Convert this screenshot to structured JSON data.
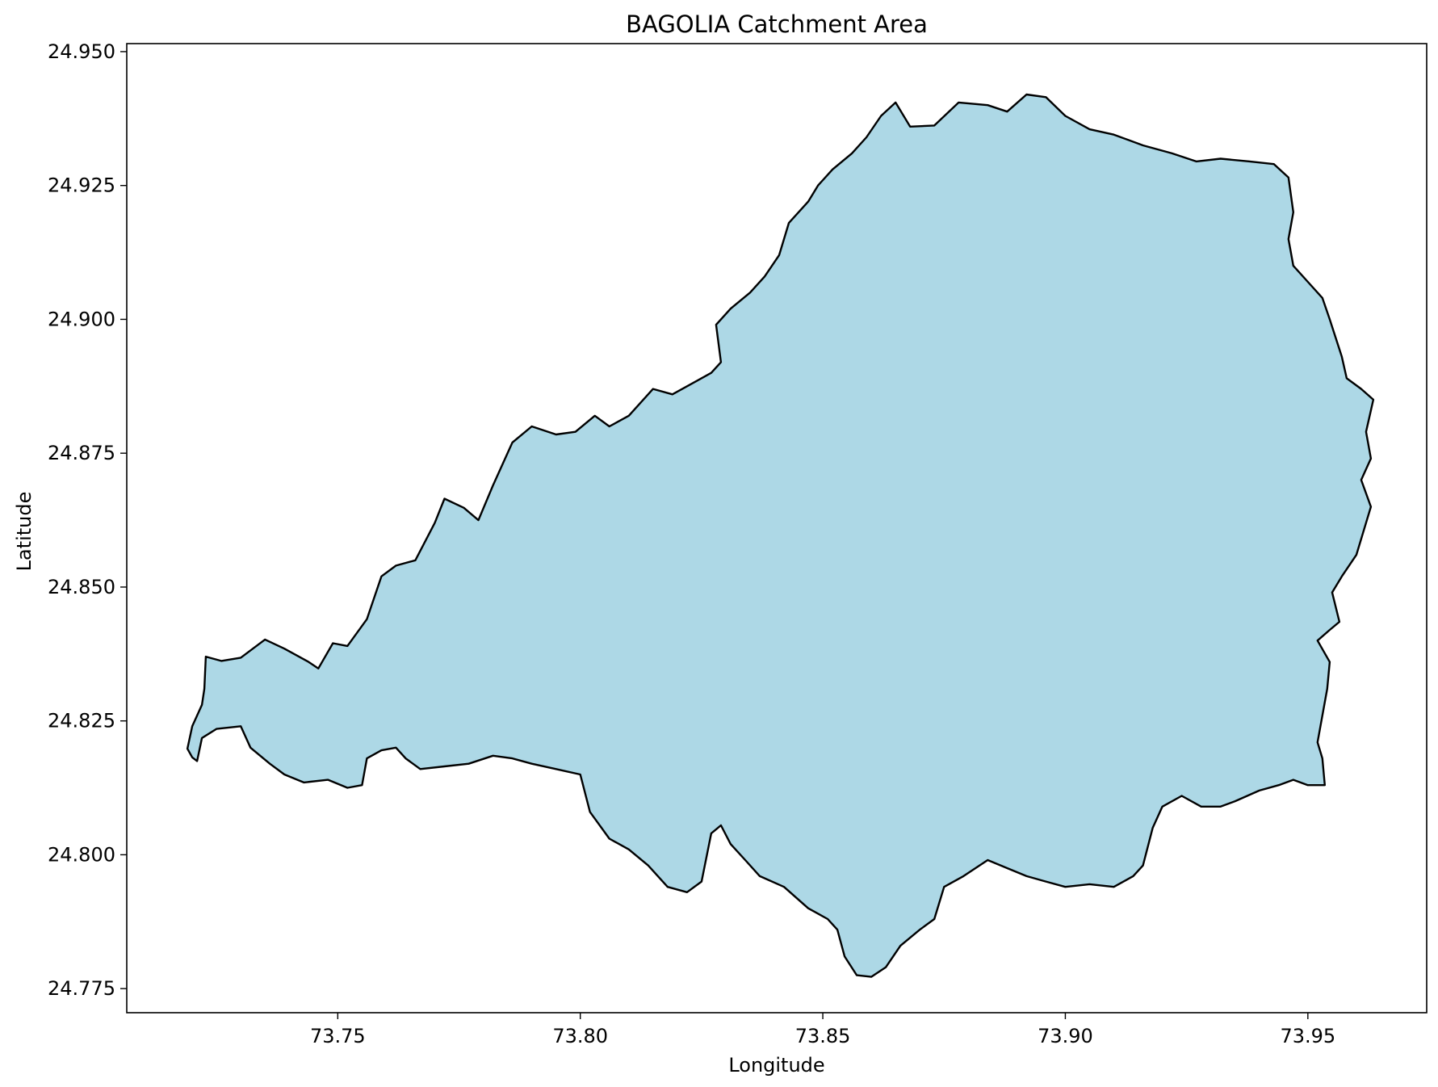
{
  "chart_data": {
    "type": "area",
    "title": "BAGOLIA Catchment Area",
    "xlabel": "Longitude",
    "ylabel": "Latitude",
    "xlim": [
      73.7065,
      73.9745
    ],
    "ylim": [
      24.7705,
      24.9515
    ],
    "xticks": [
      73.75,
      73.8,
      73.85,
      73.9,
      73.95
    ],
    "xtick_labels": [
      "73.75",
      "73.80",
      "73.85",
      "73.90",
      "73.95"
    ],
    "yticks": [
      24.775,
      24.8,
      24.825,
      24.85,
      24.875,
      24.9,
      24.925,
      24.95
    ],
    "ytick_labels": [
      "24.775",
      "24.800",
      "24.825",
      "24.850",
      "24.875",
      "24.900",
      "24.925",
      "24.950"
    ],
    "grid": false,
    "series": [
      {
        "fill_color": "#add8e6",
        "edge_color": "#000000",
        "boundary": [
          [
            73.719,
            24.8198
          ],
          [
            73.72,
            24.824
          ],
          [
            73.722,
            24.828
          ],
          [
            73.7225,
            24.831
          ],
          [
            73.7228,
            24.837
          ],
          [
            73.726,
            24.8362
          ],
          [
            73.73,
            24.8368
          ],
          [
            73.735,
            24.8402
          ],
          [
            73.739,
            24.8385
          ],
          [
            73.744,
            24.836
          ],
          [
            73.746,
            24.8348
          ],
          [
            73.749,
            24.8395
          ],
          [
            73.752,
            24.839
          ],
          [
            73.756,
            24.844
          ],
          [
            73.759,
            24.852
          ],
          [
            73.762,
            24.854
          ],
          [
            73.766,
            24.855
          ],
          [
            73.77,
            24.862
          ],
          [
            73.772,
            24.8665
          ],
          [
            73.776,
            24.8648
          ],
          [
            73.779,
            24.8625
          ],
          [
            73.782,
            24.869
          ],
          [
            73.786,
            24.877
          ],
          [
            73.79,
            24.88
          ],
          [
            73.795,
            24.8785
          ],
          [
            73.799,
            24.879
          ],
          [
            73.803,
            24.882
          ],
          [
            73.806,
            24.88
          ],
          [
            73.81,
            24.882
          ],
          [
            73.815,
            24.887
          ],
          [
            73.819,
            24.886
          ],
          [
            73.824,
            24.8885
          ],
          [
            73.827,
            24.89
          ],
          [
            73.829,
            24.892
          ],
          [
            73.828,
            24.899
          ],
          [
            73.831,
            24.902
          ],
          [
            73.835,
            24.905
          ],
          [
            73.838,
            24.908
          ],
          [
            73.841,
            24.912
          ],
          [
            73.843,
            24.918
          ],
          [
            73.847,
            24.922
          ],
          [
            73.849,
            24.925
          ],
          [
            73.852,
            24.928
          ],
          [
            73.856,
            24.931
          ],
          [
            73.859,
            24.934
          ],
          [
            73.862,
            24.938
          ],
          [
            73.865,
            24.9405
          ],
          [
            73.868,
            24.936
          ],
          [
            73.873,
            24.9362
          ],
          [
            73.878,
            24.9405
          ],
          [
            73.884,
            24.94
          ],
          [
            73.888,
            24.9388
          ],
          [
            73.892,
            24.942
          ],
          [
            73.896,
            24.9415
          ],
          [
            73.9,
            24.938
          ],
          [
            73.905,
            24.9355
          ],
          [
            73.91,
            24.9345
          ],
          [
            73.916,
            24.9325
          ],
          [
            73.922,
            24.931
          ],
          [
            73.927,
            24.9295
          ],
          [
            73.932,
            24.93
          ],
          [
            73.938,
            24.9295
          ],
          [
            73.943,
            24.929
          ],
          [
            73.946,
            24.9265
          ],
          [
            73.947,
            24.92
          ],
          [
            73.946,
            24.915
          ],
          [
            73.947,
            24.91
          ],
          [
            73.95,
            24.907
          ],
          [
            73.953,
            24.904
          ],
          [
            73.9545,
            24.9
          ],
          [
            73.957,
            24.893
          ],
          [
            73.958,
            24.889
          ],
          [
            73.961,
            24.887
          ],
          [
            73.9635,
            24.885
          ],
          [
            73.962,
            24.879
          ],
          [
            73.963,
            24.874
          ],
          [
            73.961,
            24.87
          ],
          [
            73.963,
            24.865
          ],
          [
            73.96,
            24.856
          ],
          [
            73.957,
            24.852
          ],
          [
            73.955,
            24.849
          ],
          [
            73.9565,
            24.8435
          ],
          [
            73.9545,
            24.842
          ],
          [
            73.952,
            24.84
          ],
          [
            73.9545,
            24.836
          ],
          [
            73.954,
            24.831
          ],
          [
            73.953,
            24.826
          ],
          [
            73.952,
            24.821
          ],
          [
            73.953,
            24.818
          ],
          [
            73.9535,
            24.813
          ],
          [
            73.95,
            24.813
          ],
          [
            73.947,
            24.814
          ],
          [
            73.944,
            24.813
          ],
          [
            73.94,
            24.812
          ],
          [
            73.935,
            24.81
          ],
          [
            73.932,
            24.809
          ],
          [
            73.928,
            24.809
          ],
          [
            73.924,
            24.811
          ],
          [
            73.92,
            24.809
          ],
          [
            73.918,
            24.805
          ],
          [
            73.916,
            24.798
          ],
          [
            73.914,
            24.796
          ],
          [
            73.91,
            24.794
          ],
          [
            73.905,
            24.7945
          ],
          [
            73.9,
            24.794
          ],
          [
            73.896,
            24.795
          ],
          [
            73.892,
            24.796
          ],
          [
            73.888,
            24.7975
          ],
          [
            73.884,
            24.799
          ],
          [
            73.879,
            24.796
          ],
          [
            73.875,
            24.794
          ],
          [
            73.873,
            24.788
          ],
          [
            73.87,
            24.786
          ],
          [
            73.866,
            24.783
          ],
          [
            73.863,
            24.779
          ],
          [
            73.86,
            24.7772
          ],
          [
            73.857,
            24.7775
          ],
          [
            73.8545,
            24.781
          ],
          [
            73.853,
            24.786
          ],
          [
            73.851,
            24.788
          ],
          [
            73.847,
            24.79
          ],
          [
            73.842,
            24.794
          ],
          [
            73.837,
            24.796
          ],
          [
            73.834,
            24.799
          ],
          [
            73.831,
            24.802
          ],
          [
            73.829,
            24.8055
          ],
          [
            73.827,
            24.804
          ],
          [
            73.825,
            24.795
          ],
          [
            73.822,
            24.793
          ],
          [
            73.818,
            24.794
          ],
          [
            73.814,
            24.798
          ],
          [
            73.81,
            24.801
          ],
          [
            73.806,
            24.803
          ],
          [
            73.802,
            24.808
          ],
          [
            73.8,
            24.815
          ],
          [
            73.795,
            24.816
          ],
          [
            73.79,
            24.817
          ],
          [
            73.786,
            24.818
          ],
          [
            73.782,
            24.8185
          ],
          [
            73.777,
            24.817
          ],
          [
            73.772,
            24.8165
          ],
          [
            73.767,
            24.816
          ],
          [
            73.764,
            24.818
          ],
          [
            73.762,
            24.82
          ],
          [
            73.759,
            24.8195
          ],
          [
            73.756,
            24.818
          ],
          [
            73.755,
            24.813
          ],
          [
            73.752,
            24.8125
          ],
          [
            73.748,
            24.814
          ],
          [
            73.743,
            24.8135
          ],
          [
            73.739,
            24.815
          ],
          [
            73.736,
            24.817
          ],
          [
            73.732,
            24.82
          ],
          [
            73.73,
            24.824
          ],
          [
            73.725,
            24.8235
          ],
          [
            73.722,
            24.8218
          ],
          [
            73.721,
            24.8175
          ],
          [
            73.72,
            24.8182
          ],
          [
            73.719,
            24.8198
          ]
        ]
      }
    ]
  }
}
